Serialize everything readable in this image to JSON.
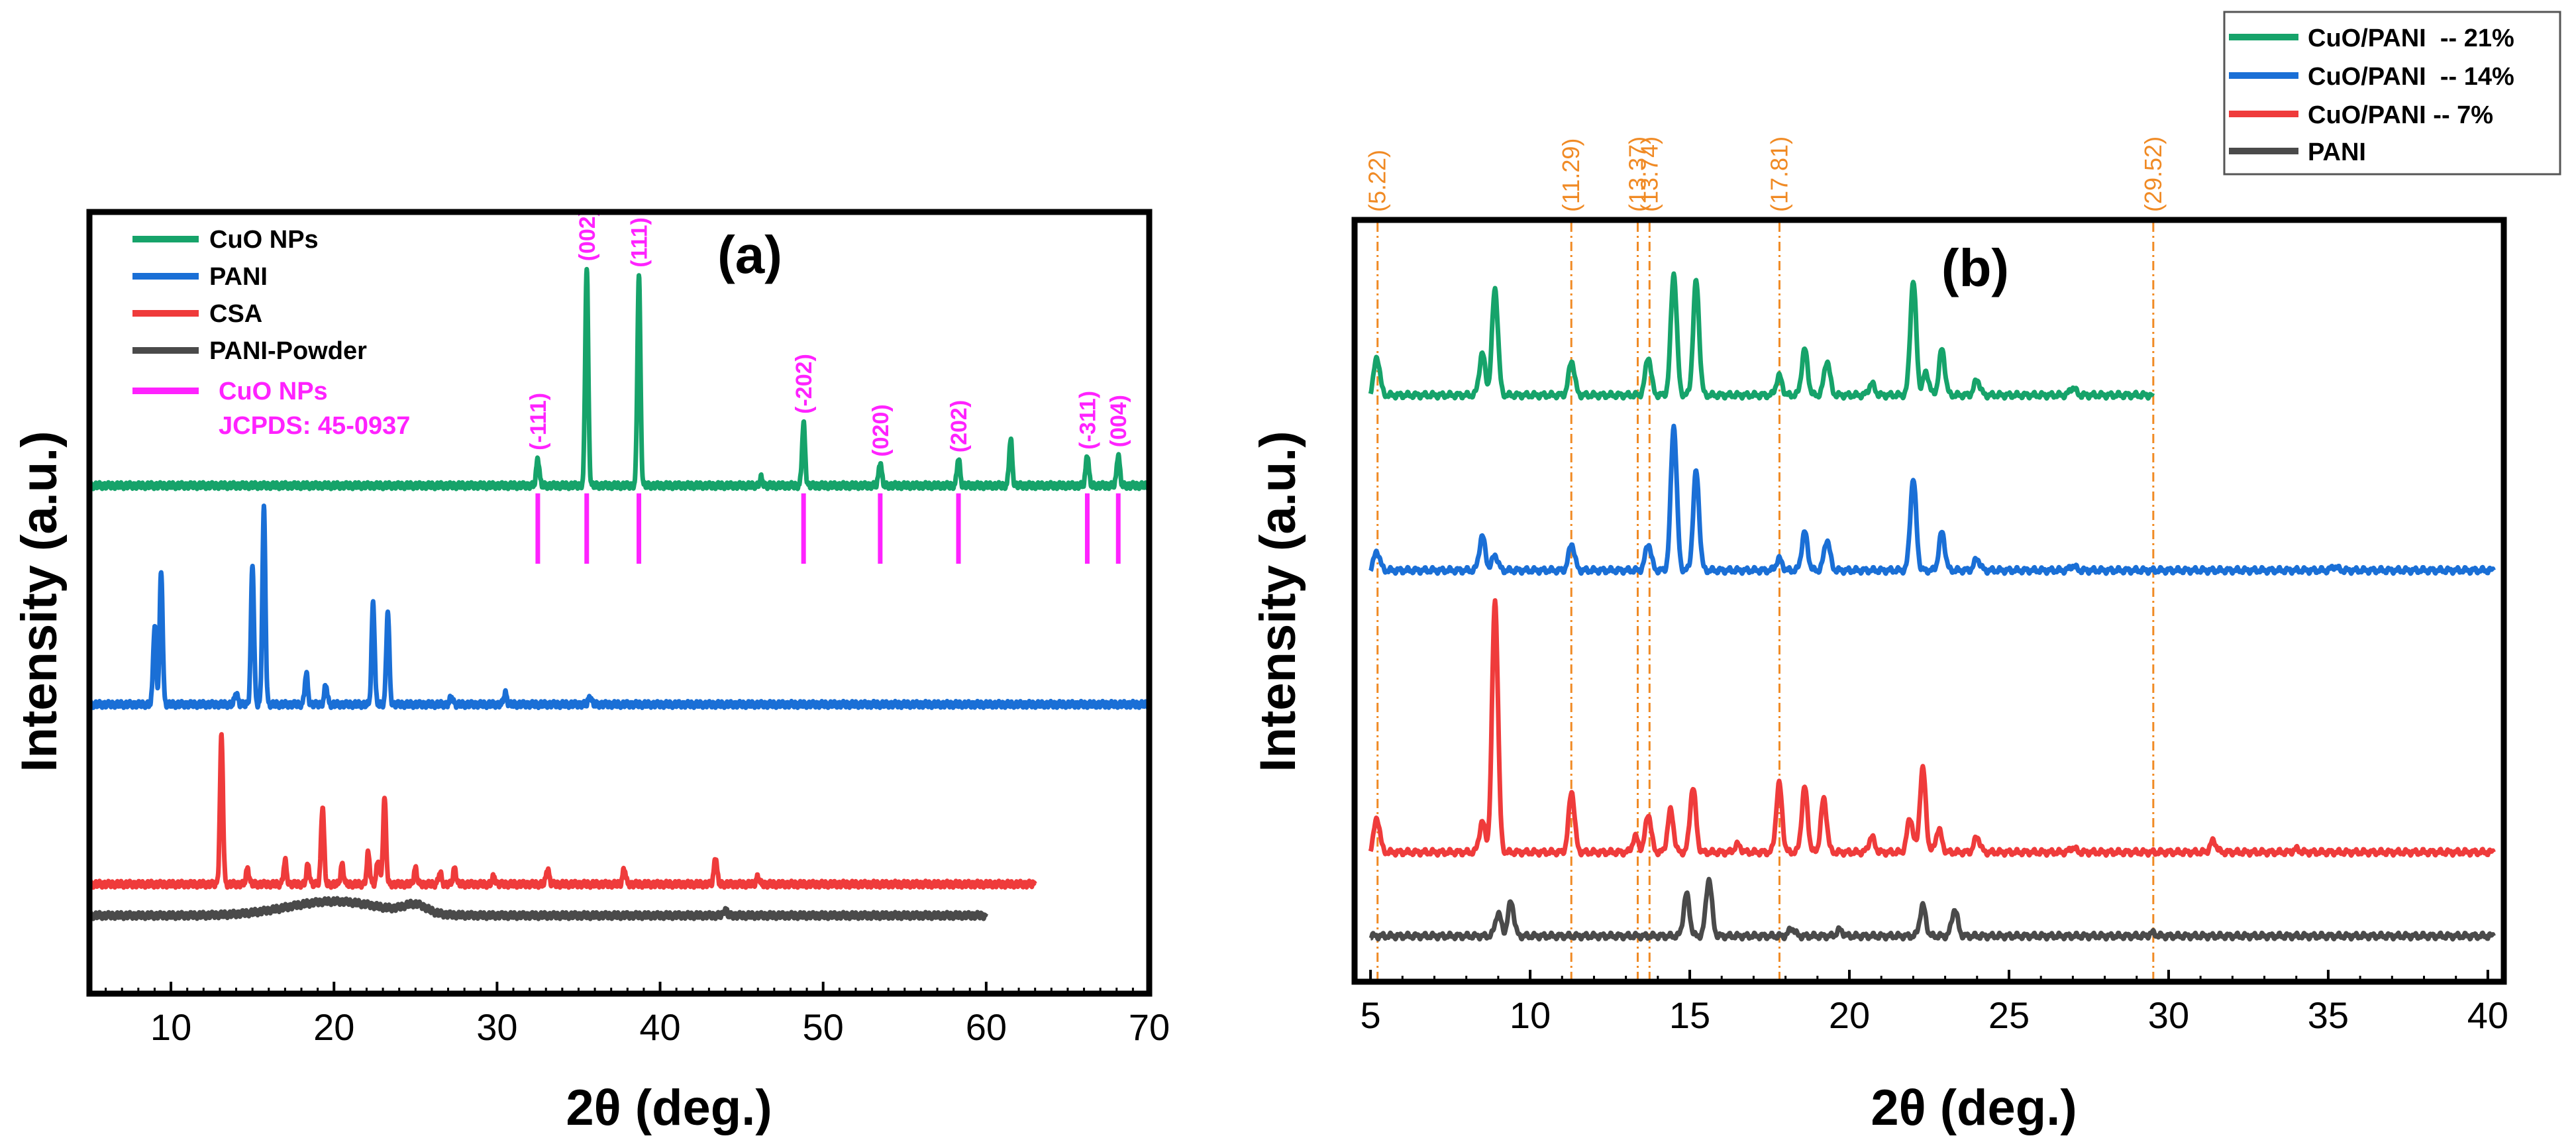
{
  "colors": {
    "cuo": "#16a36a",
    "pani": "#1a6fd6",
    "csa": "#ef3b3b",
    "powder": "#4a4a4a",
    "jcpds": "#ff22ff",
    "ref_line": "#f08a24"
  },
  "chart_data": [
    {
      "type": "line",
      "panel_label": "(a)",
      "xlabel": "2θ (deg.)",
      "ylabel": "Intensity (a.u.)",
      "xlim": [
        5,
        70
      ],
      "ylim": [
        0,
        100
      ],
      "xticks": [
        10,
        20,
        30,
        40,
        50,
        60,
        70
      ],
      "legend": [
        {
          "label": "CuO NPs",
          "color": "#16a36a",
          "kind": "line"
        },
        {
          "label": "PANI",
          "color": "#1a6fd6",
          "kind": "line"
        },
        {
          "label": "CSA",
          "color": "#ef3b3b",
          "kind": "line"
        },
        {
          "label": "PANI-Powder",
          "color": "#4a4a4a",
          "kind": "line"
        },
        {
          "label": "CuO NPs",
          "label2": "JCPDS: 45-0937",
          "color": "#ff22ff",
          "kind": "stick"
        }
      ],
      "series": [
        {
          "name": "CuO NPs",
          "color": "#16a36a",
          "baseline": 65,
          "xrange": [
            5,
            70
          ],
          "peaks": [
            [
              32.5,
              3.5
            ],
            [
              35.5,
              28
            ],
            [
              38.7,
              27
            ],
            [
              46.2,
              1
            ],
            [
              48.8,
              8
            ],
            [
              53.5,
              3
            ],
            [
              58.3,
              3.5
            ],
            [
              61.5,
              6
            ],
            [
              66.2,
              4
            ],
            [
              68.1,
              4
            ]
          ]
        },
        {
          "name": "PANI",
          "color": "#1a6fd6",
          "baseline": 37,
          "xrange": [
            5,
            70
          ],
          "peaks": [
            [
              9.0,
              10
            ],
            [
              9.4,
              17
            ],
            [
              14.0,
              1.5
            ],
            [
              15.0,
              18
            ],
            [
              15.7,
              25
            ],
            [
              18.3,
              4
            ],
            [
              19.5,
              2.5
            ],
            [
              22.4,
              13
            ],
            [
              23.3,
              12
            ],
            [
              27.2,
              1
            ],
            [
              30.5,
              1.5
            ],
            [
              35.7,
              1
            ]
          ]
        },
        {
          "name": "CSA",
          "color": "#ef3b3b",
          "baseline": 14,
          "xrange": [
            5,
            63
          ],
          "peaks": [
            [
              13.1,
              19
            ],
            [
              14.7,
              2
            ],
            [
              17.0,
              3
            ],
            [
              18.4,
              2.5
            ],
            [
              19.3,
              10
            ],
            [
              20.5,
              2.5
            ],
            [
              22.1,
              4
            ],
            [
              22.7,
              3
            ],
            [
              23.1,
              11
            ],
            [
              25.0,
              2
            ],
            [
              26.5,
              1.5
            ],
            [
              27.4,
              2
            ],
            [
              29.8,
              1
            ],
            [
              33.1,
              2
            ],
            [
              37.8,
              2
            ],
            [
              43.4,
              3.5
            ],
            [
              46.0,
              1
            ]
          ]
        },
        {
          "name": "PANI-Powder",
          "color": "#4a4a4a",
          "baseline": 10,
          "xrange": [
            5,
            60
          ],
          "humps": [
            [
              20,
              1.8,
              4
            ],
            [
              25,
              1.1,
              1
            ]
          ],
          "peaks": [
            [
              44,
              0.8
            ]
          ]
        }
      ],
      "reference_sticks": {
        "name": "CuO NPs JCPDS: 45-0937",
        "x": [
          32.5,
          35.5,
          38.7,
          48.8,
          53.5,
          58.3,
          66.2,
          68.1
        ],
        "labels": [
          "(-111)",
          "(002)",
          "(111)",
          "(-202)",
          "(020)",
          "(202)",
          "(-311)",
          "(004)"
        ],
        "ytop": 64,
        "ybottom": 55
      }
    },
    {
      "type": "line",
      "panel_label": "(b)",
      "xlabel": "2θ (deg.)",
      "ylabel": "Intensity (a.u.)",
      "xlim": [
        4.5,
        40.5
      ],
      "ylim": [
        0,
        100
      ],
      "xticks": [
        5,
        10,
        15,
        20,
        25,
        30,
        35,
        40
      ],
      "reference_lines": {
        "x": [
          5.22,
          11.29,
          13.37,
          13.74,
          17.81,
          29.52
        ],
        "labels": [
          "(5.22)",
          "(11.29)",
          "(13.37)",
          "(13.74)",
          "(17.81)",
          "(29.52)"
        ]
      },
      "legend": [
        {
          "label": "CuO/PANI  -- 21%",
          "color": "#16a36a"
        },
        {
          "label": "CuO/PANI  -- 14%",
          "color": "#1a6fd6"
        },
        {
          "label": "CuO/PANI -- 7%",
          "color": "#ef3b3b"
        },
        {
          "label": "PANI",
          "color": "#4a4a4a"
        }
      ],
      "series": [
        {
          "name": "CuO/PANI  -- 21%",
          "color": "#16a36a",
          "baseline": 77,
          "xrange": [
            5,
            29.5
          ],
          "peaks": [
            [
              5.2,
              5
            ],
            [
              8.5,
              5.5
            ],
            [
              8.9,
              14
            ],
            [
              11.3,
              4.5
            ],
            [
              13.7,
              5
            ],
            [
              14.5,
              16
            ],
            [
              15.2,
              15
            ],
            [
              17.8,
              2.5
            ],
            [
              18.6,
              6
            ],
            [
              19.3,
              4.5
            ],
            [
              20.7,
              1.5
            ],
            [
              22.0,
              15
            ],
            [
              22.4,
              3
            ],
            [
              22.9,
              6
            ],
            [
              24.0,
              2
            ],
            [
              27.0,
              1
            ]
          ]
        },
        {
          "name": "CuO/PANI  -- 14%",
          "color": "#1a6fd6",
          "baseline": 54,
          "xrange": [
            5,
            40.2
          ],
          "peaks": [
            [
              5.2,
              2.5
            ],
            [
              8.5,
              4.5
            ],
            [
              8.9,
              2
            ],
            [
              11.3,
              3.5
            ],
            [
              13.7,
              3.5
            ],
            [
              14.5,
              19
            ],
            [
              15.2,
              13
            ],
            [
              17.8,
              1.5
            ],
            [
              18.6,
              5
            ],
            [
              19.3,
              4
            ],
            [
              22.0,
              12
            ],
            [
              22.9,
              5
            ],
            [
              24.0,
              1.5
            ],
            [
              27.0,
              0.6
            ],
            [
              35.2,
              0.5
            ]
          ]
        },
        {
          "name": "CuO/PANI -- 7%",
          "color": "#ef3b3b",
          "baseline": 17,
          "xrange": [
            5,
            40.2
          ],
          "peaks": [
            [
              5.2,
              4.5
            ],
            [
              8.5,
              4
            ],
            [
              8.9,
              33
            ],
            [
              11.3,
              8
            ],
            [
              13.3,
              2
            ],
            [
              13.7,
              5
            ],
            [
              14.4,
              5.5
            ],
            [
              15.1,
              8.5
            ],
            [
              16.5,
              1
            ],
            [
              17.8,
              9
            ],
            [
              18.6,
              8.5
            ],
            [
              19.2,
              7
            ],
            [
              20.7,
              2
            ],
            [
              21.9,
              4.5
            ],
            [
              22.3,
              11
            ],
            [
              22.8,
              3
            ],
            [
              24.0,
              2
            ],
            [
              27.0,
              0.6
            ],
            [
              31.4,
              1.5
            ],
            [
              34.0,
              0.4
            ]
          ]
        },
        {
          "name": "PANI",
          "color": "#4a4a4a",
          "baseline": 6,
          "xrange": [
            5,
            40.2
          ],
          "peaks": [
            [
              9.0,
              3
            ],
            [
              9.4,
              4.5
            ],
            [
              14.9,
              5.5
            ],
            [
              15.6,
              7.5
            ],
            [
              18.2,
              1
            ],
            [
              19.7,
              0.8
            ],
            [
              22.3,
              4
            ],
            [
              23.3,
              3.5
            ],
            [
              29.5,
              0.4
            ]
          ]
        }
      ]
    }
  ]
}
